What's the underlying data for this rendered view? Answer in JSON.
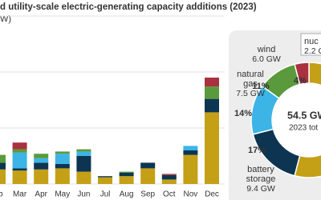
{
  "chart_data": [
    {
      "type": "bar",
      "title": "d utility-scale electric-generating capacity additions (2023)",
      "subtitle": "W)",
      "categories": [
        "eb",
        "Mar",
        "Apr",
        "May",
        "Jun",
        "Jul",
        "Aug",
        "Sep",
        "Oct",
        "Nov",
        "Dec"
      ],
      "series": [
        {
          "color": "#c4a017",
          "values": [
            1.3,
            1.2,
            1.3,
            1.4,
            1.1,
            0.6,
            0.7,
            1.4,
            0.4,
            2.6,
            6.4
          ]
        },
        {
          "color": "#0d3552",
          "values": [
            0.6,
            0.2,
            0.6,
            0.4,
            1.4,
            0.1,
            0.3,
            0.5,
            0.4,
            0.4,
            1.2
          ]
        },
        {
          "color": "#3db4e6",
          "values": [
            0,
            1.4,
            0.4,
            0.9,
            0.4,
            0,
            0,
            0,
            0,
            0.4,
            0
          ]
        },
        {
          "color": "#5a9a3c",
          "values": [
            0.7,
            0.3,
            0.4,
            0.2,
            0.2,
            0,
            0.1,
            0,
            0,
            0,
            1.1
          ]
        },
        {
          "color": "#a8323f",
          "values": [
            0,
            0.6,
            0,
            0,
            0,
            0,
            0,
            0,
            0.1,
            0,
            0.8
          ]
        }
      ],
      "ylim": [
        0,
        15
      ],
      "yticks": [
        0,
        5,
        10,
        15
      ],
      "grid": true
    },
    {
      "type": "pie",
      "center_value": "54.5 GW",
      "center_label": "2023 tot",
      "categories": [
        null,
        "battery storage",
        "natural gas",
        "wind",
        "nuc"
      ],
      "values": [
        54,
        17,
        14,
        11,
        4
      ],
      "value_labels": [
        null,
        "17%",
        "14%",
        "11%",
        "4%"
      ],
      "capacity_labels": [
        null,
        "9.4 GW",
        "7.5 GW",
        "6.0 GW",
        "2.2 G"
      ],
      "colors": [
        "#c4a017",
        "#0d3552",
        "#3db4e6",
        "#5a9a3c",
        "#a8323f"
      ]
    }
  ]
}
